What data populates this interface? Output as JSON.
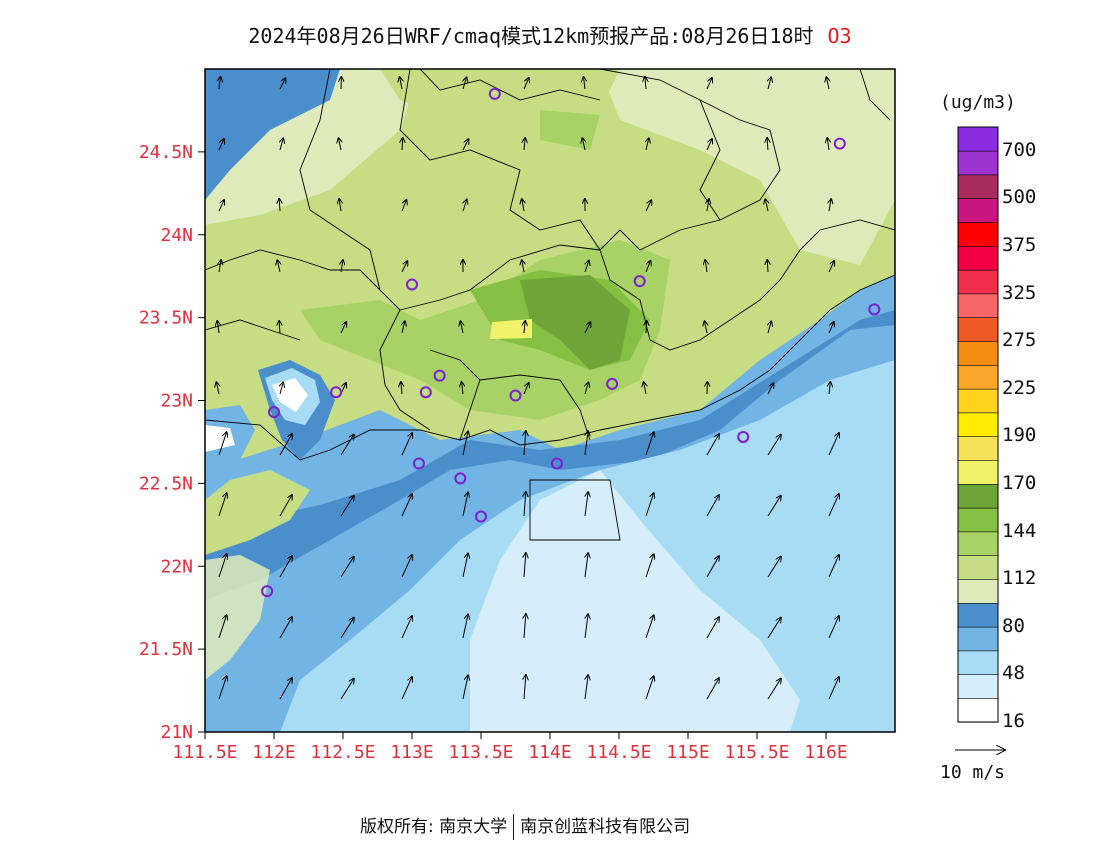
{
  "title": {
    "text": "2024年08月26日WRF/cmaq模式12km预报产品:08月26日18时",
    "species": "O3"
  },
  "map": {
    "lat_labels": [
      "24.5N",
      "24N",
      "23.5N",
      "23N",
      "22.5N",
      "22N",
      "21.5N",
      "21N"
    ],
    "lat_values": [
      24.5,
      24.0,
      23.5,
      23.0,
      22.5,
      22.0,
      21.5,
      21.0
    ],
    "lon_labels": [
      "111.5E",
      "112E",
      "112.5E",
      "113E",
      "113.5E",
      "114E",
      "114.5E",
      "115E",
      "115.5E",
      "116E"
    ],
    "lon_values": [
      111.5,
      112.0,
      112.5,
      113.0,
      113.5,
      114.0,
      114.5,
      115.0,
      115.5,
      116.0
    ],
    "lon_range": [
      111.5,
      116.5
    ],
    "lat_range": [
      21.0,
      25.0
    ],
    "stations": [
      {
        "lon": 113.6,
        "lat": 24.85
      },
      {
        "lon": 116.1,
        "lat": 24.55
      },
      {
        "lon": 113.0,
        "lat": 23.7
      },
      {
        "lon": 114.65,
        "lat": 23.72
      },
      {
        "lon": 116.35,
        "lat": 23.55
      },
      {
        "lon": 112.45,
        "lat": 23.05
      },
      {
        "lon": 113.1,
        "lat": 23.05
      },
      {
        "lon": 113.2,
        "lat": 23.15
      },
      {
        "lon": 113.75,
        "lat": 23.03
      },
      {
        "lon": 114.45,
        "lat": 23.1
      },
      {
        "lon": 112.0,
        "lat": 22.93
      },
      {
        "lon": 115.4,
        "lat": 22.78
      },
      {
        "lon": 113.05,
        "lat": 22.62
      },
      {
        "lon": 113.35,
        "lat": 22.53
      },
      {
        "lon": 114.05,
        "lat": 22.62
      },
      {
        "lon": 113.5,
        "lat": 22.3
      },
      {
        "lon": 111.95,
        "lat": 21.85
      }
    ]
  },
  "colorbar": {
    "unit": "(ug/m3)",
    "labels": [
      "700",
      "500",
      "375",
      "325",
      "275",
      "225",
      "190",
      "170",
      "144",
      "112",
      "80",
      "48",
      "16"
    ],
    "colors": [
      "#ffffff",
      "#d6eefa",
      "#a8dcf5",
      "#72b4e4",
      "#4a8fcb",
      "#dfeabb",
      "#c6dd84",
      "#a9d266",
      "#86c043",
      "#6fa438",
      "#f0f36a",
      "#f5e05a",
      "#ffec00",
      "#ffd21f",
      "#f8a72a",
      "#f48b12",
      "#ef5a24",
      "#f7676a",
      "#ef2f4c",
      "#f00043",
      "#ff0000",
      "#c8157f",
      "#a82c5d",
      "#9e33cf",
      "#8a2be2"
    ],
    "ref_vector": "10 m/s"
  },
  "footer": {
    "copyright": "版权所有: 南京大学",
    "company": "南京创蓝科技有限公司"
  }
}
